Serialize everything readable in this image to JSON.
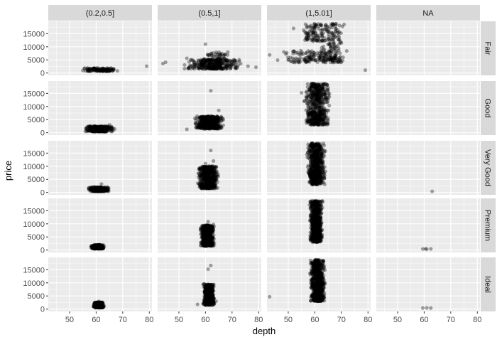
{
  "chart_data": {
    "type": "scatter",
    "xlabel": "depth",
    "ylabel": "price",
    "xlim": [
      42,
      81
    ],
    "ylim": [
      -900,
      19700
    ],
    "x_ticks": [
      50,
      60,
      70,
      80
    ],
    "y_ticks": [
      0,
      5000,
      10000,
      15000
    ],
    "grid": true,
    "point_color": "#000000",
    "point_alpha": 0.35,
    "column_facets": [
      "(0.2,0.5]",
      "(0.5,1]",
      "(1,5.01]",
      "NA"
    ],
    "row_facets": [
      "Fair",
      "Good",
      "Very Good",
      "Premium",
      "Ideal"
    ],
    "colors": {
      "panel_background": "#ebebeb",
      "grid_major": "#ffffff",
      "strip_background": "#d9d9d9",
      "tick": "#333333",
      "tick_label": "#4d4d4d"
    },
    "panels": [
      {
        "row": "Fair",
        "col": "(0.2,0.5]",
        "points": [
          [
            79,
            2600
          ],
          [
            62,
            1000
          ],
          [
            58,
            900
          ],
          [
            66,
            1200
          ],
          [
            68,
            800
          ],
          [
            55,
            950
          ]
        ],
        "clusters": [
          {
            "x": [
              55,
              68
            ],
            "y": [
              600,
              1900
            ],
            "n": 130
          }
        ]
      },
      {
        "row": "Fair",
        "col": "(0.5,1]",
        "points": [
          [
            44,
            3600
          ],
          [
            45,
            4100
          ],
          [
            79,
            2200
          ],
          [
            76,
            2600
          ],
          [
            64,
            7900
          ],
          [
            60,
            11000
          ],
          [
            53,
            5600
          ]
        ],
        "clusters": [
          {
            "x": [
              52,
              74
            ],
            "y": [
              1500,
              5200
            ],
            "n": 320
          },
          {
            "x": [
              58,
              70
            ],
            "y": [
              4500,
              8000
            ],
            "n": 50
          }
        ]
      },
      {
        "row": "Fair",
        "col": "(1,5.01]",
        "points": [
          [
            43,
            6900
          ],
          [
            79,
            1100
          ],
          [
            72,
            8400
          ],
          [
            46,
            4900
          ],
          [
            71,
            18500
          ],
          [
            68,
            18700
          ],
          [
            52,
            17000
          ]
        ],
        "clusters": [
          {
            "x": [
              47,
              72
            ],
            "y": [
              4000,
              8500
            ],
            "n": 140
          },
          {
            "x": [
              62,
              71
            ],
            "y": [
              4000,
              18800
            ],
            "n": 140
          },
          {
            "x": [
              54,
              64
            ],
            "y": [
              12000,
              18800
            ],
            "n": 90
          }
        ]
      },
      {
        "row": "Fair",
        "col": "NA",
        "points": [],
        "clusters": []
      },
      {
        "row": "Good",
        "col": "(0.2,0.5]",
        "points": [
          [
            57,
            800
          ],
          [
            67,
            1400
          ],
          [
            65,
            3000
          ]
        ],
        "clusters": [
          {
            "x": [
              55,
              67
            ],
            "y": [
              400,
              2500
            ],
            "n": 300
          }
        ]
      },
      {
        "row": "Good",
        "col": "(0.5,1]",
        "points": [
          [
            53,
            1300
          ],
          [
            62,
            16000
          ],
          [
            65,
            8500
          ],
          [
            56,
            5500
          ]
        ],
        "clusters": [
          {
            "x": [
              56,
              67
            ],
            "y": [
              1500,
              6300
            ],
            "n": 480
          }
        ]
      },
      {
        "row": "Good",
        "col": "(1,5.01]",
        "points": [
          [
            55,
            15200
          ],
          [
            56,
            12000
          ],
          [
            65,
            5600
          ]
        ],
        "clusters": [
          {
            "x": [
              56,
              66
            ],
            "y": [
              3000,
              18800
            ],
            "n": 560
          }
        ]
      },
      {
        "row": "Good",
        "col": "NA",
        "points": [],
        "clusters": []
      },
      {
        "row": "Very Good",
        "col": "(0.2,0.5]",
        "points": [
          [
            62,
            3200
          ],
          [
            59,
            2200
          ]
        ],
        "clusters": [
          {
            "x": [
              57,
              65
            ],
            "y": [
              400,
              2000
            ],
            "n": 360
          }
        ]
      },
      {
        "row": "Very Good",
        "col": "(0.5,1]",
        "points": [
          [
            62,
            16000
          ],
          [
            60,
            11000
          ],
          [
            63,
            12000
          ]
        ],
        "clusters": [
          {
            "x": [
              57,
              65
            ],
            "y": [
              1500,
              10000
            ],
            "n": 520
          }
        ]
      },
      {
        "row": "Very Good",
        "col": "(1,5.01]",
        "points": [
          [
            57,
            14500
          ],
          [
            64,
            8000
          ]
        ],
        "clusters": [
          {
            "x": [
              57,
              64
            ],
            "y": [
              3000,
              18800
            ],
            "n": 650
          }
        ]
      },
      {
        "row": "Very Good",
        "col": "NA",
        "points": [
          [
            63,
            400
          ]
        ],
        "clusters": []
      },
      {
        "row": "Premium",
        "col": "(0.2,0.5]",
        "points": [
          [
            58,
            1000
          ],
          [
            63,
            1500
          ]
        ],
        "clusters": [
          {
            "x": [
              58,
              63
            ],
            "y": [
              500,
              2000
            ],
            "n": 340
          }
        ]
      },
      {
        "row": "Premium",
        "col": "(0.5,1]",
        "points": [
          [
            61,
            10800
          ],
          [
            63,
            9800
          ],
          [
            59,
            7500
          ]
        ],
        "clusters": [
          {
            "x": [
              58,
              63.5
            ],
            "y": [
              1500,
              9500
            ],
            "n": 520
          }
        ]
      },
      {
        "row": "Premium",
        "col": "(1,5.01]",
        "points": [
          [
            58,
            17200
          ]
        ],
        "clusters": [
          {
            "x": [
              58,
              63
            ],
            "y": [
              3000,
              18800
            ],
            "n": 700
          }
        ]
      },
      {
        "row": "Premium",
        "col": "NA",
        "points": [
          [
            59.5,
            400
          ],
          [
            60.5,
            450
          ],
          [
            61,
            350
          ],
          [
            62.5,
            420
          ]
        ],
        "clusters": []
      },
      {
        "row": "Ideal",
        "col": "(0.2,0.5]",
        "points": [
          [
            59,
            1000
          ],
          [
            63,
            1200
          ],
          [
            61,
            2900
          ]
        ],
        "clusters": [
          {
            "x": [
              59,
              63
            ],
            "y": [
              500,
              2600
            ],
            "n": 360
          }
        ]
      },
      {
        "row": "Ideal",
        "col": "(0.5,1]",
        "points": [
          [
            62,
            16600
          ],
          [
            61,
            15200
          ],
          [
            64,
            3000
          ],
          [
            57,
            1800
          ]
        ],
        "clusters": [
          {
            "x": [
              59,
              63.5
            ],
            "y": [
              1500,
              9500
            ],
            "n": 500
          }
        ]
      },
      {
        "row": "Ideal",
        "col": "(1,5.01]",
        "points": [
          [
            43,
            4700
          ]
        ],
        "clusters": [
          {
            "x": [
              58,
              64
            ],
            "y": [
              3000,
              18800
            ],
            "n": 700
          }
        ]
      },
      {
        "row": "Ideal",
        "col": "NA",
        "points": [
          [
            59.5,
            400
          ],
          [
            61,
            450
          ],
          [
            62.5,
            380
          ]
        ],
        "clusters": []
      }
    ]
  }
}
